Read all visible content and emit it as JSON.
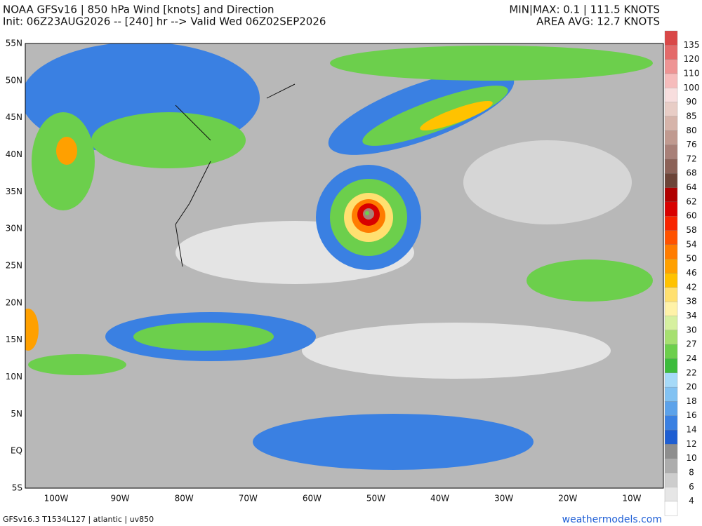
{
  "header": {
    "title": "NOAA GFSv16 |  850 hPa Wind [knots] and Direction",
    "subtitle": "Init: 06Z23AUG2026 -- [240] hr --> Valid Wed 06Z02SEP2026",
    "minmax": "MIN|MAX: 0.1 | 111.5 KNOTS",
    "area_avg": "AREA AVG: 12.7 KNOTS"
  },
  "map": {
    "lat_labels": [
      "55N",
      "50N",
      "45N",
      "40N",
      "35N",
      "30N",
      "25N",
      "20N",
      "15N",
      "10N",
      "5N",
      "EQ",
      "5S"
    ],
    "lon_labels": [
      "100W",
      "90W",
      "80W",
      "70W",
      "60W",
      "50W",
      "40W",
      "30W",
      "20W",
      "10W"
    ]
  },
  "colorbar": {
    "labels": [
      "135",
      "120",
      "110",
      "100",
      "90",
      "85",
      "80",
      "76",
      "72",
      "68",
      "64",
      "62",
      "60",
      "58",
      "54",
      "50",
      "46",
      "42",
      "38",
      "34",
      "30",
      "27",
      "24",
      "22",
      "20",
      "18",
      "16",
      "14",
      "12",
      "10",
      "8",
      "6",
      "4"
    ],
    "colors": [
      "#d94848",
      "#e46a6a",
      "#ee9494",
      "#f6bcbc",
      "#f8dede",
      "#e8cdc6",
      "#d6b4aa",
      "#c09a90",
      "#a88078",
      "#8c6258",
      "#6c4438",
      "#b00000",
      "#d80000",
      "#f82400",
      "#ff5200",
      "#ff7c00",
      "#ffa000",
      "#ffc200",
      "#ffe070",
      "#fff2a8",
      "#d6f0a0",
      "#a6e070",
      "#6ccf4c",
      "#3cbc3c",
      "#a6daf8",
      "#82c2f2",
      "#5ca2ea",
      "#3a80e2",
      "#1e5ed2",
      "#8e8e8e",
      "#adadad",
      "#cdcdcd",
      "#e6e6e6",
      "#ffffff"
    ]
  },
  "footer": {
    "left": "GFSv16.3 T1534L127 | atlantic | uv850",
    "right": "weathermodels.com"
  }
}
